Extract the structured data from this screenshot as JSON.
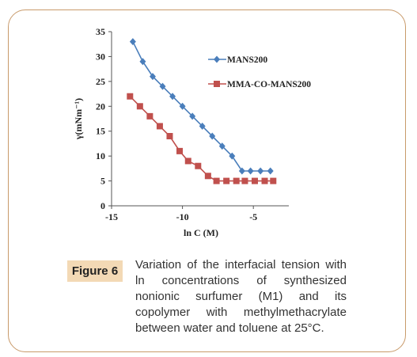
{
  "chart_data": {
    "type": "line",
    "xlabel": "ln C (M)",
    "ylabel": "γ(mNm⁻¹)",
    "xlim": [
      -15,
      -2.5
    ],
    "ylim": [
      0,
      35
    ],
    "xticks": [
      -15,
      -10,
      -5
    ],
    "yticks": [
      0,
      5,
      10,
      15,
      20,
      25,
      30,
      35
    ],
    "grid": false,
    "legend_position": "top-right",
    "series": [
      {
        "name": "MANS200",
        "color": "#4a7ebb",
        "marker": "diamond",
        "x": [
          -13.5,
          -12.8,
          -12.1,
          -11.4,
          -10.7,
          -10.0,
          -9.3,
          -8.6,
          -7.9,
          -7.2,
          -6.5,
          -5.8,
          -5.2,
          -4.5,
          -3.8
        ],
        "y": [
          33,
          29,
          26,
          24,
          22,
          20,
          18,
          16,
          14,
          12,
          10,
          7,
          7,
          7,
          7
        ]
      },
      {
        "name": "MMA-CO-MANS200",
        "color": "#c0504d",
        "marker": "square",
        "x": [
          -13.7,
          -13.0,
          -12.3,
          -11.6,
          -10.9,
          -10.2,
          -9.6,
          -8.9,
          -8.2,
          -7.6,
          -6.9,
          -6.2,
          -5.6,
          -4.9,
          -4.2,
          -3.6
        ],
        "y": [
          22,
          20,
          18,
          16,
          14,
          11,
          9,
          8,
          6,
          5,
          5,
          5,
          5,
          5,
          5,
          5
        ]
      }
    ]
  },
  "figure": {
    "label": "Figure 6",
    "caption": "Variation of the interfacial tension with ln concentrations of synthesized nonionic surfumer (M1) and its copolymer with methylmethacrylate between water and toluene at 25°C."
  }
}
